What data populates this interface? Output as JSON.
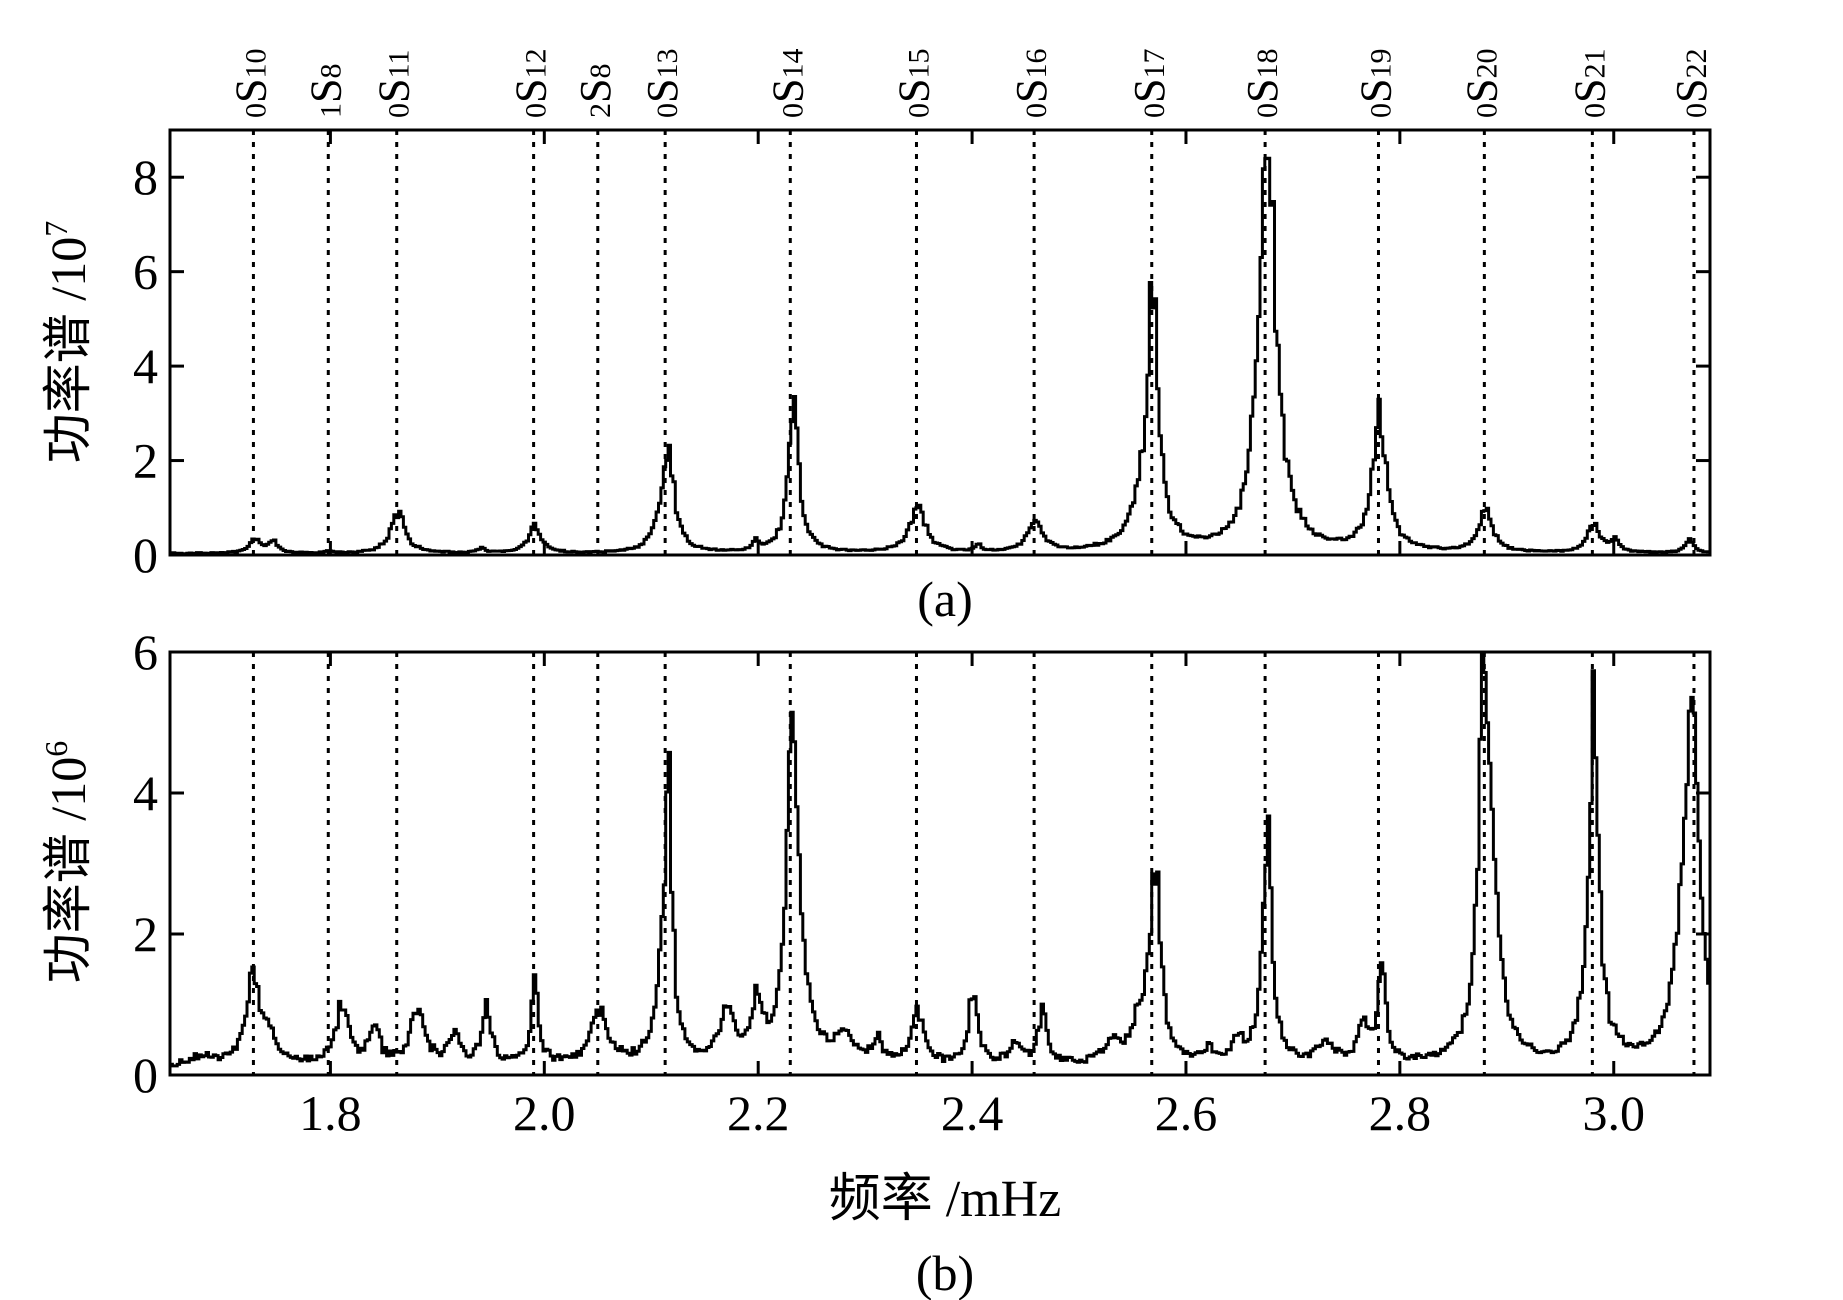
{
  "mode_labels": [
    {
      "n": "0",
      "l": "10",
      "freq": 1.728
    },
    {
      "n": "1",
      "l": "8",
      "freq": 1.798
    },
    {
      "n": "0",
      "l": "11",
      "freq": 1.862
    },
    {
      "n": "0",
      "l": "12",
      "freq": 1.99
    },
    {
      "n": "2",
      "l": "8",
      "freq": 2.05
    },
    {
      "n": "0",
      "l": "13",
      "freq": 2.113
    },
    {
      "n": "0",
      "l": "14",
      "freq": 2.23
    },
    {
      "n": "0",
      "l": "15",
      "freq": 2.348
    },
    {
      "n": "0",
      "l": "16",
      "freq": 2.458
    },
    {
      "n": "0",
      "l": "17",
      "freq": 2.568
    },
    {
      "n": "0",
      "l": "18",
      "freq": 2.674
    },
    {
      "n": "0",
      "l": "19",
      "freq": 2.78
    },
    {
      "n": "0",
      "l": "20",
      "freq": 2.879
    },
    {
      "n": "0",
      "l": "21",
      "freq": 2.98
    },
    {
      "n": "0",
      "l": "22",
      "freq": 3.075
    }
  ],
  "xlabel": "频率 /mHz",
  "chart_data": [
    {
      "type": "line",
      "panel_label": "(a)",
      "ylabel_main": "功率谱 /10",
      "ylabel_exp": "7",
      "xlim": [
        1.65,
        3.09
      ],
      "ylim": [
        0,
        9
      ],
      "yticks": [
        0,
        2,
        4,
        6,
        8
      ],
      "ytick_labels": [
        "0",
        "2",
        "4",
        "6",
        "8"
      ],
      "xtick_labels": [],
      "baseline": 0.03,
      "peaks": [
        {
          "f": 1.728,
          "a": 0.3,
          "w": 0.006
        },
        {
          "f": 1.745,
          "a": 0.25,
          "w": 0.005
        },
        {
          "f": 1.798,
          "a": 0.05,
          "w": 0.003
        },
        {
          "f": 1.862,
          "a": 0.85,
          "w": 0.008
        },
        {
          "f": 1.94,
          "a": 0.1,
          "w": 0.004
        },
        {
          "f": 1.99,
          "a": 0.55,
          "w": 0.007
        },
        {
          "f": 2.105,
          "a": 0.3,
          "w": 0.006
        },
        {
          "f": 2.115,
          "a": 2.0,
          "w": 0.007
        },
        {
          "f": 2.197,
          "a": 0.25,
          "w": 0.003
        },
        {
          "f": 2.232,
          "a": 3.1,
          "w": 0.006
        },
        {
          "f": 2.348,
          "a": 0.95,
          "w": 0.009
        },
        {
          "f": 2.405,
          "a": 0.15,
          "w": 0.003
        },
        {
          "f": 2.458,
          "a": 0.65,
          "w": 0.008
        },
        {
          "f": 2.562,
          "a": 1.0,
          "w": 0.014
        },
        {
          "f": 2.568,
          "a": 4.7,
          "w": 0.006
        },
        {
          "f": 2.674,
          "a": 8.4,
          "w": 0.008
        },
        {
          "f": 2.68,
          "a": 1.5,
          "w": 0.012
        },
        {
          "f": 2.78,
          "a": 2.8,
          "w": 0.008
        },
        {
          "f": 2.879,
          "a": 0.85,
          "w": 0.008
        },
        {
          "f": 2.98,
          "a": 0.58,
          "w": 0.007
        },
        {
          "f": 3.0,
          "a": 0.25,
          "w": 0.005
        },
        {
          "f": 3.07,
          "a": 0.28,
          "w": 0.005
        }
      ]
    },
    {
      "type": "line",
      "panel_label": "(b)",
      "ylabel_main": "功率谱 /10",
      "ylabel_exp": "6",
      "xlim": [
        1.65,
        3.09
      ],
      "ylim": [
        0,
        6
      ],
      "yticks": [
        0,
        2,
        4,
        6
      ],
      "ytick_labels": [
        "0",
        "2",
        "4",
        "6"
      ],
      "xtick_values": [
        1.8,
        2.0,
        2.2,
        2.4,
        2.6,
        2.8,
        3.0
      ],
      "xtick_labels": [
        "1.8",
        "2.0",
        "2.2",
        "2.4",
        "2.6",
        "2.8",
        "3.0"
      ],
      "baseline": 0.12,
      "peaks": [
        {
          "f": 1.68,
          "a": 0.15,
          "w": 0.01
        },
        {
          "f": 1.726,
          "a": 1.2,
          "w": 0.007
        },
        {
          "f": 1.74,
          "a": 0.4,
          "w": 0.01
        },
        {
          "f": 1.81,
          "a": 0.8,
          "w": 0.008
        },
        {
          "f": 1.84,
          "a": 0.45,
          "w": 0.006
        },
        {
          "f": 1.88,
          "a": 0.8,
          "w": 0.008
        },
        {
          "f": 1.915,
          "a": 0.45,
          "w": 0.006
        },
        {
          "f": 1.945,
          "a": 0.8,
          "w": 0.005
        },
        {
          "f": 1.99,
          "a": 1.3,
          "w": 0.004
        },
        {
          "f": 2.05,
          "a": 0.8,
          "w": 0.009
        },
        {
          "f": 2.11,
          "a": 1.0,
          "w": 0.008
        },
        {
          "f": 2.115,
          "a": 3.5,
          "w": 0.004
        },
        {
          "f": 2.17,
          "a": 0.7,
          "w": 0.008
        },
        {
          "f": 2.198,
          "a": 0.8,
          "w": 0.006
        },
        {
          "f": 2.23,
          "a": 4.2,
          "w": 0.005
        },
        {
          "f": 2.235,
          "a": 1.5,
          "w": 0.01
        },
        {
          "f": 2.28,
          "a": 0.35,
          "w": 0.01
        },
        {
          "f": 2.31,
          "a": 0.3,
          "w": 0.006
        },
        {
          "f": 2.348,
          "a": 0.75,
          "w": 0.007
        },
        {
          "f": 2.4,
          "a": 1.05,
          "w": 0.005
        },
        {
          "f": 2.44,
          "a": 0.3,
          "w": 0.006
        },
        {
          "f": 2.465,
          "a": 0.75,
          "w": 0.005
        },
        {
          "f": 2.53,
          "a": 0.25,
          "w": 0.01
        },
        {
          "f": 2.555,
          "a": 0.5,
          "w": 0.008
        },
        {
          "f": 2.57,
          "a": 2.8,
          "w": 0.006
        },
        {
          "f": 2.62,
          "a": 0.2,
          "w": 0.006
        },
        {
          "f": 2.648,
          "a": 0.35,
          "w": 0.006
        },
        {
          "f": 2.675,
          "a": 3.4,
          "w": 0.005
        },
        {
          "f": 2.73,
          "a": 0.3,
          "w": 0.01
        },
        {
          "f": 2.765,
          "a": 0.5,
          "w": 0.006
        },
        {
          "f": 2.782,
          "a": 1.5,
          "w": 0.004
        },
        {
          "f": 2.878,
          "a": 5.2,
          "w": 0.006
        },
        {
          "f": 2.885,
          "a": 1.5,
          "w": 0.01
        },
        {
          "f": 2.98,
          "a": 4.8,
          "w": 0.006
        },
        {
          "f": 3.073,
          "a": 4.2,
          "w": 0.007
        },
        {
          "f": 3.065,
          "a": 1.5,
          "w": 0.012
        }
      ]
    }
  ]
}
